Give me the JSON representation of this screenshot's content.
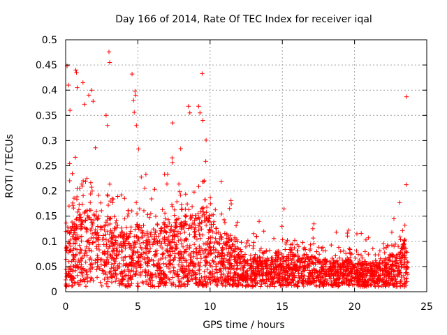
{
  "chart_data": {
    "type": "scatter",
    "title": "Day 166 of 2014, Rate Of TEC Index for receiver iqal",
    "xlabel": "GPS time / hours",
    "ylabel": "ROTI / TECUs",
    "xlim": [
      0,
      25
    ],
    "ylim": [
      0,
      0.5
    ],
    "x_ticks": [
      0,
      5,
      10,
      15,
      20,
      25
    ],
    "x_tick_labels": [
      "0",
      "5",
      "10",
      "15",
      "20",
      "25"
    ],
    "y_ticks": [
      0,
      0.05,
      0.1,
      0.15,
      0.2,
      0.25,
      0.3,
      0.35,
      0.4,
      0.45,
      0.5
    ],
    "y_tick_labels": [
      "0",
      "0.05",
      "0.1",
      "0.15",
      "0.2",
      "0.25",
      "0.3",
      "0.35",
      "0.4",
      "0.45",
      "0.5"
    ],
    "grid": true,
    "marker": "+",
    "series_color": "#ff0000",
    "x_data_range": [
      0,
      23.7
    ],
    "envelope": {
      "x": [
        0,
        0.5,
        1,
        1.5,
        2,
        2.5,
        3,
        3.5,
        4,
        4.5,
        5,
        5.5,
        6,
        6.5,
        7,
        7.5,
        8,
        8.5,
        9,
        9.5,
        10,
        10.5,
        11,
        11.5,
        12,
        12.5,
        13,
        13.5,
        14,
        14.5,
        15,
        15.5,
        16,
        16.5,
        17,
        17.5,
        18,
        18.5,
        19,
        19.5,
        20,
        20.5,
        21,
        21.5,
        22,
        22.5,
        23,
        23.5,
        23.7
      ],
      "upper": [
        0.3,
        0.29,
        0.33,
        0.34,
        0.31,
        0.26,
        0.3,
        0.25,
        0.2,
        0.26,
        0.29,
        0.24,
        0.22,
        0.23,
        0.25,
        0.26,
        0.28,
        0.3,
        0.29,
        0.33,
        0.29,
        0.23,
        0.23,
        0.18,
        0.13,
        0.12,
        0.12,
        0.14,
        0.12,
        0.14,
        0.16,
        0.15,
        0.15,
        0.12,
        0.14,
        0.13,
        0.12,
        0.11,
        0.13,
        0.13,
        0.1,
        0.12,
        0.1,
        0.1,
        0.12,
        0.14,
        0.13,
        0.3,
        0.28
      ],
      "center": [
        0.07,
        0.08,
        0.09,
        0.1,
        0.09,
        0.08,
        0.09,
        0.08,
        0.07,
        0.07,
        0.08,
        0.07,
        0.07,
        0.08,
        0.08,
        0.08,
        0.09,
        0.09,
        0.09,
        0.1,
        0.09,
        0.07,
        0.06,
        0.06,
        0.04,
        0.035,
        0.035,
        0.04,
        0.035,
        0.04,
        0.04,
        0.04,
        0.04,
        0.035,
        0.04,
        0.035,
        0.035,
        0.03,
        0.035,
        0.035,
        0.03,
        0.03,
        0.03,
        0.03,
        0.035,
        0.04,
        0.04,
        0.06,
        0.06
      ]
    },
    "outliers": [
      {
        "x": 0.1,
        "y": 0.448
      },
      {
        "x": 0.2,
        "y": 0.41
      },
      {
        "x": 0.3,
        "y": 0.36
      },
      {
        "x": 0.7,
        "y": 0.44
      },
      {
        "x": 0.75,
        "y": 0.435
      },
      {
        "x": 0.8,
        "y": 0.405
      },
      {
        "x": 1.2,
        "y": 0.415
      },
      {
        "x": 1.3,
        "y": 0.372
      },
      {
        "x": 1.6,
        "y": 0.39
      },
      {
        "x": 1.8,
        "y": 0.4
      },
      {
        "x": 1.9,
        "y": 0.378
      },
      {
        "x": 2.8,
        "y": 0.35
      },
      {
        "x": 2.9,
        "y": 0.33
      },
      {
        "x": 3.0,
        "y": 0.476
      },
      {
        "x": 3.05,
        "y": 0.455
      },
      {
        "x": 4.6,
        "y": 0.432
      },
      {
        "x": 4.8,
        "y": 0.398
      },
      {
        "x": 4.85,
        "y": 0.39
      },
      {
        "x": 4.7,
        "y": 0.38
      },
      {
        "x": 4.75,
        "y": 0.356
      },
      {
        "x": 4.9,
        "y": 0.33
      },
      {
        "x": 7.4,
        "y": 0.335
      },
      {
        "x": 8.5,
        "y": 0.368
      },
      {
        "x": 8.6,
        "y": 0.355
      },
      {
        "x": 9.2,
        "y": 0.368
      },
      {
        "x": 9.3,
        "y": 0.355
      },
      {
        "x": 9.45,
        "y": 0.433
      },
      {
        "x": 9.5,
        "y": 0.34
      },
      {
        "x": 23.6,
        "y": 0.387
      }
    ],
    "point_count_estimate": 3000
  }
}
